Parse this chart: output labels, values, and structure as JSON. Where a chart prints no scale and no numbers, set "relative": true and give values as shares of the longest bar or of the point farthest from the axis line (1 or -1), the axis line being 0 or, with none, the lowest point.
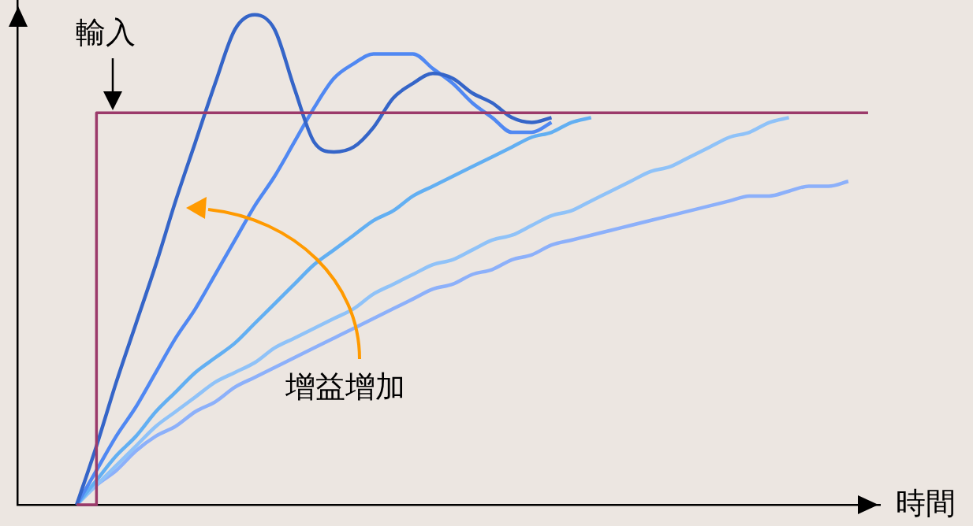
{
  "chart_data": {
    "type": "line",
    "relative": true,
    "xlabel": "時間",
    "annotations": [
      "輸入",
      "增益增加"
    ],
    "grid": false,
    "legend": false,
    "marker": "none",
    "line_style": "solid",
    "categories": [
      null,
      null,
      null,
      null,
      null,
      null,
      null,
      null,
      null,
      null,
      null,
      null,
      null,
      null,
      null,
      null,
      null,
      null,
      null,
      null,
      null,
      null,
      null,
      null,
      null,
      null,
      null,
      null,
      null,
      null,
      null,
      null,
      null,
      null,
      null,
      null,
      null,
      null,
      null,
      null,
      null
    ],
    "series": [
      {
        "type": "step",
        "color": "#9b3a6a",
        "values": [
          0,
          0.8,
          0.8,
          0.8,
          0.8,
          0.8,
          0.8,
          0.8,
          0.8,
          0.8,
          0.8,
          0.8,
          0.8,
          0.8,
          0.8,
          0.8,
          0.8,
          0.8,
          0.8,
          0.8,
          0.8,
          0.8,
          0.8,
          0.8,
          0.8,
          0.8,
          0.8,
          0.8,
          0.8,
          0.8,
          0.8,
          0.8,
          0.8,
          0.8,
          0.8,
          0.8,
          0.8,
          0.8,
          0.8,
          0.8,
          0.8
        ]
      },
      {
        "color": "#3565c8",
        "values": [
          0,
          0.12,
          0.25,
          0.37,
          0.49,
          0.62,
          0.74,
          0.86,
          0.97,
          1,
          0.97,
          0.85,
          0.74,
          0.72,
          0.73,
          0.77,
          0.83,
          0.86,
          0.88,
          0.87,
          0.84,
          0.82,
          0.79,
          0.78,
          0.79,
          null,
          null,
          null,
          null,
          null,
          null,
          null,
          null,
          null,
          null,
          null,
          null,
          null,
          null,
          null,
          null
        ]
      },
      {
        "color": "#5088f2",
        "values": [
          0,
          0.07,
          0.14,
          0.2,
          0.27,
          0.34,
          0.4,
          0.47,
          0.54,
          0.61,
          0.67,
          0.74,
          0.81,
          0.87,
          0.9,
          0.92,
          0.92,
          0.92,
          0.89,
          0.86,
          0.82,
          0.79,
          0.76,
          0.76,
          0.78,
          null,
          null,
          null,
          null,
          null,
          null,
          null,
          null,
          null,
          null,
          null,
          null,
          null,
          null,
          null,
          null
        ]
      },
      {
        "color": "#62aff2",
        "values": [
          0,
          0.05,
          0.1,
          0.14,
          0.19,
          0.23,
          0.27,
          0.3,
          0.33,
          0.37,
          0.41,
          0.45,
          0.49,
          0.52,
          0.55,
          0.58,
          0.6,
          0.63,
          0.65,
          0.67,
          0.69,
          0.71,
          0.73,
          0.75,
          0.76,
          0.78,
          0.79,
          null,
          null,
          null,
          null,
          null,
          null,
          null,
          null,
          null,
          null,
          null,
          null,
          null,
          null
        ]
      },
      {
        "color": "#8fc2f8",
        "values": [
          0,
          0.04,
          0.08,
          0.12,
          0.16,
          0.19,
          0.22,
          0.25,
          0.27,
          0.29,
          0.32,
          0.34,
          0.36,
          0.38,
          0.4,
          0.43,
          0.45,
          0.47,
          0.49,
          0.5,
          0.52,
          0.54,
          0.55,
          0.57,
          0.59,
          0.6,
          0.62,
          0.64,
          0.66,
          0.68,
          0.69,
          0.71,
          0.73,
          0.75,
          0.76,
          0.78,
          0.79,
          null,
          null,
          null,
          null
        ]
      },
      {
        "color": "#8cb0fa",
        "values": [
          0,
          0.04,
          0.07,
          0.11,
          0.14,
          0.16,
          0.19,
          0.21,
          0.24,
          0.26,
          0.28,
          0.3,
          0.32,
          0.34,
          0.36,
          0.38,
          0.4,
          0.42,
          0.44,
          0.45,
          0.47,
          0.48,
          0.5,
          0.51,
          0.53,
          0.54,
          0.55,
          0.56,
          0.57,
          0.58,
          0.59,
          0.6,
          0.61,
          0.62,
          0.63,
          0.63,
          0.64,
          0.65,
          0.65,
          0.66,
          null
        ]
      }
    ]
  }
}
